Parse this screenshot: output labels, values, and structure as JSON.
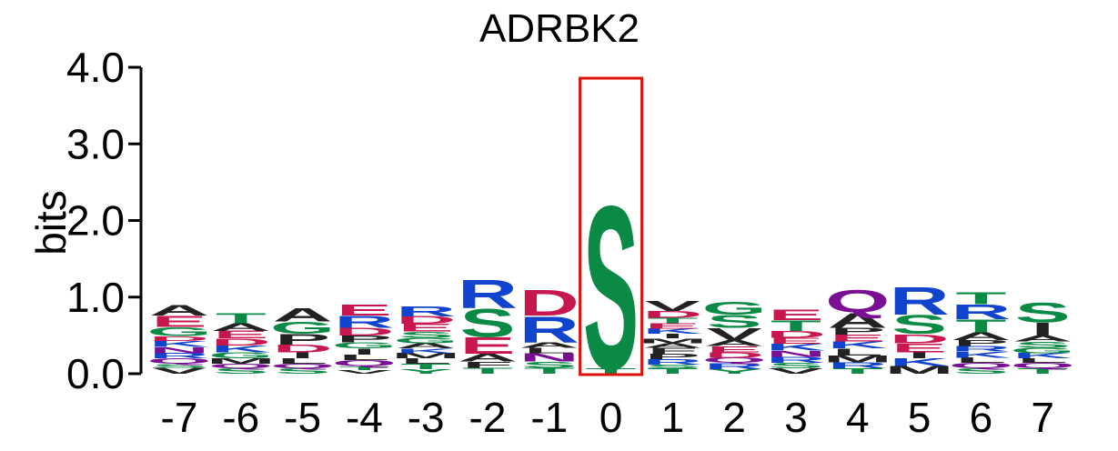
{
  "chart_data": {
    "type": "sequence-logo",
    "title": "ADRBK2",
    "ylabel": "bits",
    "ylim": [
      0,
      4
    ],
    "y_ticks": [
      "0.0",
      "1.0",
      "2.0",
      "3.0",
      "4.0"
    ],
    "highlight_position": "0",
    "colors": {
      "S": "#0a8a44",
      "T": "#0a8a44",
      "G": "#0a8a44",
      "Y": "#0a8a44",
      "C": "#0a8a44",
      "R": "#1144cc",
      "K": "#1144cc",
      "H": "#1144cc",
      "D": "#c8174e",
      "E": "#c8174e",
      "N": "#7a0f94",
      "Q": "#7a0f94",
      "A": "#222222",
      "V": "#222222",
      "L": "#222222",
      "I": "#222222",
      "M": "#222222",
      "P": "#222222",
      "F": "#222222",
      "W": "#222222",
      "highlight": "#e0100c"
    },
    "positions": [
      {
        "pos": "-7",
        "letters": [
          [
            "V",
            0.08
          ],
          [
            "S",
            0.05
          ],
          [
            "Q",
            0.07
          ],
          [
            "R",
            0.07
          ],
          [
            "N",
            0.08
          ],
          [
            "K",
            0.08
          ],
          [
            "D",
            0.06
          ],
          [
            "G",
            0.12
          ],
          [
            "E",
            0.15
          ],
          [
            "A",
            0.14
          ]
        ]
      },
      {
        "pos": "-6",
        "letters": [
          [
            "S",
            0.07
          ],
          [
            "Q",
            0.06
          ],
          [
            "M",
            0.07
          ],
          [
            "G",
            0.08
          ],
          [
            "K",
            0.09
          ],
          [
            "D",
            0.09
          ],
          [
            "E",
            0.1
          ],
          [
            "A",
            0.1
          ],
          [
            "T",
            0.13
          ]
        ]
      },
      {
        "pos": "-5",
        "letters": [
          [
            "S",
            0.07
          ],
          [
            "Q",
            0.06
          ],
          [
            "L",
            0.07
          ],
          [
            "I",
            0.08
          ],
          [
            "D",
            0.1
          ],
          [
            "P",
            0.14
          ],
          [
            "G",
            0.16
          ],
          [
            "A",
            0.18
          ]
        ]
      },
      {
        "pos": "-4",
        "letters": [
          [
            "V",
            0.05
          ],
          [
            "T",
            0.05
          ],
          [
            "Q",
            0.08
          ],
          [
            "L",
            0.07
          ],
          [
            "I",
            0.08
          ],
          [
            "G",
            0.08
          ],
          [
            "P",
            0.09
          ],
          [
            "D",
            0.1
          ],
          [
            "R",
            0.16
          ],
          [
            "E",
            0.15
          ]
        ]
      },
      {
        "pos": "-3",
        "letters": [
          [
            "Y",
            0.06
          ],
          [
            "T",
            0.07
          ],
          [
            "L",
            0.07
          ],
          [
            "M",
            0.07
          ],
          [
            "K",
            0.06
          ],
          [
            "A",
            0.07
          ],
          [
            "G",
            0.07
          ],
          [
            "S",
            0.08
          ],
          [
            "E",
            0.1
          ],
          [
            "D",
            0.1
          ],
          [
            "R",
            0.13
          ]
        ]
      },
      {
        "pos": "-2",
        "letters": [
          [
            "T",
            0.08
          ],
          [
            "F",
            0.08
          ],
          [
            "A",
            0.1
          ],
          [
            "E",
            0.22
          ],
          [
            "S",
            0.38
          ],
          [
            "R",
            0.38
          ]
        ]
      },
      {
        "pos": "-1",
        "letters": [
          [
            "T",
            0.08
          ],
          [
            "S",
            0.08
          ],
          [
            "N",
            0.11
          ],
          [
            "L",
            0.07
          ],
          [
            "A",
            0.07
          ],
          [
            "R",
            0.35
          ],
          [
            "D",
            0.35
          ]
        ]
      },
      {
        "pos": "0",
        "letters": [
          [
            "T",
            0.07
          ],
          [
            "S",
            2.18
          ]
        ]
      },
      {
        "pos": "1",
        "letters": [
          [
            "T",
            0.07
          ],
          [
            "S",
            0.05
          ],
          [
            "R",
            0.07
          ],
          [
            "P",
            0.07
          ],
          [
            "F",
            0.08
          ],
          [
            "A",
            0.06
          ],
          [
            "M",
            0.06
          ],
          [
            "I",
            0.06
          ],
          [
            "K",
            0.07
          ],
          [
            "E",
            0.07
          ],
          [
            "T",
            0.07
          ],
          [
            "D",
            0.09
          ],
          [
            "V",
            0.13
          ]
        ]
      },
      {
        "pos": "2",
        "letters": [
          [
            "Y",
            0.06
          ],
          [
            "R",
            0.08
          ],
          [
            "Q",
            0.07
          ],
          [
            "D",
            0.07
          ],
          [
            "E",
            0.08
          ],
          [
            "A",
            0.08
          ],
          [
            "V",
            0.16
          ],
          [
            "S",
            0.17
          ],
          [
            "G",
            0.17
          ]
        ]
      },
      {
        "pos": "3",
        "letters": [
          [
            "V",
            0.07
          ],
          [
            "S",
            0.07
          ],
          [
            "R",
            0.08
          ],
          [
            "N",
            0.08
          ],
          [
            "K",
            0.09
          ],
          [
            "E",
            0.08
          ],
          [
            "D",
            0.09
          ],
          [
            "T",
            0.14
          ],
          [
            "E",
            0.14
          ]
        ]
      },
      {
        "pos": "4",
        "letters": [
          [
            "T",
            0.07
          ],
          [
            "R",
            0.08
          ],
          [
            "M",
            0.09
          ],
          [
            "L",
            0.09
          ],
          [
            "K",
            0.09
          ],
          [
            "E",
            0.09
          ],
          [
            "P",
            0.09
          ],
          [
            "A",
            0.2
          ],
          [
            "Q",
            0.3
          ]
        ]
      },
      {
        "pos": "5",
        "letters": [
          [
            "M",
            0.1
          ],
          [
            "K",
            0.1
          ],
          [
            "I",
            0.08
          ],
          [
            "E",
            0.12
          ],
          [
            "D",
            0.12
          ],
          [
            "S",
            0.25
          ],
          [
            "R",
            0.37
          ]
        ]
      },
      {
        "pos": "6",
        "letters": [
          [
            "S",
            0.07
          ],
          [
            "Q",
            0.07
          ],
          [
            "L",
            0.07
          ],
          [
            "K",
            0.08
          ],
          [
            "R",
            0.07
          ],
          [
            "P",
            0.08
          ],
          [
            "A",
            0.1
          ],
          [
            "T",
            0.17
          ],
          [
            "R",
            0.2
          ],
          [
            "T",
            0.16
          ]
        ]
      },
      {
        "pos": "7",
        "letters": [
          [
            "T",
            0.07
          ],
          [
            "Q",
            0.07
          ],
          [
            "L",
            0.06
          ],
          [
            "K",
            0.07
          ],
          [
            "G",
            0.07
          ],
          [
            "S",
            0.08
          ],
          [
            "A",
            0.08
          ],
          [
            "I",
            0.17
          ],
          [
            "S",
            0.27
          ]
        ]
      }
    ]
  }
}
